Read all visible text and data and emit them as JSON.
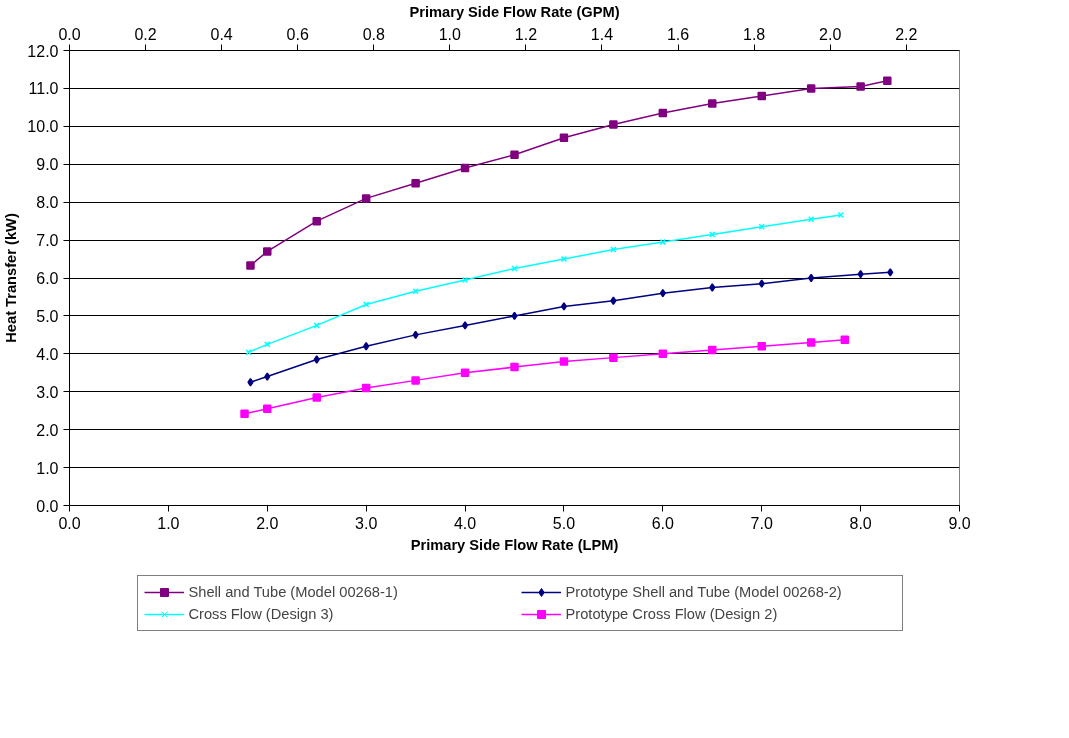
{
  "chart_data": {
    "type": "line",
    "xlabel": "Primary Side Flow Rate (LPM)",
    "ylabel": "Heat Transfer (kW)",
    "x2label": "Primary Side Flow Rate (GPM)",
    "xlim": [
      0,
      9
    ],
    "xticks": [
      {
        "value": 0,
        "label": "0.0"
      },
      {
        "value": 1,
        "label": "1.0"
      },
      {
        "value": 2,
        "label": "2.0"
      },
      {
        "value": 3,
        "label": "3.0"
      },
      {
        "value": 4,
        "label": "4.0"
      },
      {
        "value": 5,
        "label": "5.0"
      },
      {
        "value": 6,
        "label": "6.0"
      },
      {
        "value": 7,
        "label": "7.0"
      },
      {
        "value": 8,
        "label": "8.0"
      },
      {
        "value": 9,
        "label": "9.0"
      }
    ],
    "x2lim": [
      0,
      2.34
    ],
    "x2ticks": [
      {
        "value": 0,
        "label": "0.0"
      },
      {
        "value": 0.2,
        "label": "0.2"
      },
      {
        "value": 0.4,
        "label": "0.4"
      },
      {
        "value": 0.6,
        "label": "0.6"
      },
      {
        "value": 0.8,
        "label": "0.8"
      },
      {
        "value": 1.0,
        "label": "1.0"
      },
      {
        "value": 1.2,
        "label": "1.2"
      },
      {
        "value": 1.4,
        "label": "1.4"
      },
      {
        "value": 1.6,
        "label": "1.6"
      },
      {
        "value": 1.8,
        "label": "1.8"
      },
      {
        "value": 2.0,
        "label": "2.0"
      },
      {
        "value": 2.2,
        "label": "2.2"
      }
    ],
    "ylim": [
      0,
      12
    ],
    "yticks": [
      {
        "value": 0,
        "label": "0.0"
      },
      {
        "value": 1,
        "label": "1.0"
      },
      {
        "value": 2,
        "label": "2.0"
      },
      {
        "value": 3,
        "label": "3.0"
      },
      {
        "value": 4,
        "label": "4.0"
      },
      {
        "value": 5,
        "label": "5.0"
      },
      {
        "value": 6,
        "label": "6.0"
      },
      {
        "value": 7,
        "label": "7.0"
      },
      {
        "value": 8,
        "label": "8.0"
      },
      {
        "value": 9,
        "label": "9.0"
      },
      {
        "value": 10,
        "label": "10.0"
      },
      {
        "value": 11,
        "label": "11.0"
      },
      {
        "value": 12,
        "label": "12.0"
      }
    ],
    "grid": "y",
    "legend": "bottom",
    "line_style": "solid",
    "series": [
      {
        "name": "Shell and Tube (Model 00268-1)",
        "color": "#800080",
        "marker": "square",
        "x": [
          1.83,
          2.0,
          2.5,
          3.0,
          3.5,
          4.0,
          4.5,
          5.0,
          5.5,
          6.0,
          6.5,
          7.0,
          7.5,
          8.0,
          8.27
        ],
        "values": [
          6.33,
          6.7,
          7.5,
          8.1,
          8.5,
          8.9,
          9.25,
          9.7,
          10.05,
          10.35,
          10.6,
          10.8,
          11.0,
          11.05,
          11.2
        ]
      },
      {
        "name": "Cross Flow (Design 3)",
        "color": "#00ffff",
        "marker": "cross",
        "x": [
          1.81,
          2.0,
          2.5,
          3.0,
          3.5,
          4.0,
          4.5,
          5.0,
          5.5,
          6.0,
          6.5,
          7.0,
          7.5,
          7.8
        ],
        "values": [
          4.04,
          4.25,
          4.75,
          5.3,
          5.65,
          5.95,
          6.25,
          6.5,
          6.75,
          6.95,
          7.15,
          7.35,
          7.55,
          7.66
        ]
      },
      {
        "name": "Prototype Shell and Tube (Model 00268-2)",
        "color": "#000080",
        "marker": "diamond",
        "x": [
          1.83,
          2.0,
          2.5,
          3.0,
          3.5,
          4.0,
          4.5,
          5.0,
          5.5,
          6.0,
          6.5,
          7.0,
          7.5,
          8.0,
          8.3
        ],
        "values": [
          3.25,
          3.4,
          3.85,
          4.2,
          4.5,
          4.75,
          5.0,
          5.25,
          5.4,
          5.6,
          5.75,
          5.85,
          6.0,
          6.1,
          6.15
        ]
      },
      {
        "name": "Prototype Cross Flow (Design 2)",
        "color": "#ff00ff",
        "marker": "square",
        "x": [
          1.77,
          2.0,
          2.5,
          3.0,
          3.5,
          4.0,
          4.5,
          5.0,
          5.5,
          6.0,
          6.5,
          7.0,
          7.5,
          7.84
        ],
        "values": [
          2.42,
          2.55,
          2.85,
          3.1,
          3.3,
          3.5,
          3.65,
          3.8,
          3.9,
          4.0,
          4.1,
          4.2,
          4.3,
          4.37
        ]
      }
    ]
  }
}
